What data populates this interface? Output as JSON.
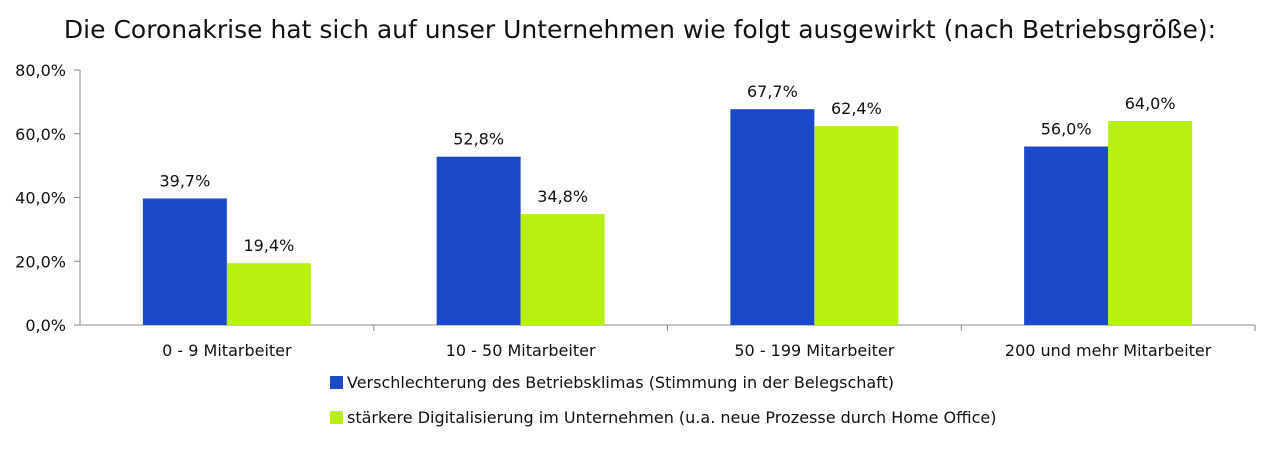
{
  "chart_data": {
    "type": "bar",
    "title": "Die Coronakrise hat sich auf unser Unternehmen wie folgt ausgewirkt (nach Betriebsgröße):",
    "categories": [
      "0 - 9 Mitarbeiter",
      "10 - 50 Mitarbeiter",
      "50 - 199 Mitarbeiter",
      "200 und mehr Mitarbeiter"
    ],
    "series": [
      {
        "name": "Verschlechterung des Betriebsklimas (Stimmung in der Belegschaft)",
        "color": "#1a49c9",
        "values": [
          39.7,
          52.8,
          67.7,
          56.0
        ],
        "labels": [
          "39,7%",
          "52,8%",
          "67,7%",
          "56,0%"
        ]
      },
      {
        "name": "stärkere Digitalisierung im Unternehmen (u.a. neue Prozesse durch Home Office)",
        "color": "#b8f014",
        "values": [
          19.4,
          34.8,
          62.4,
          64.0
        ],
        "labels": [
          "19,4%",
          "34,8%",
          "62,4%",
          "64,0%"
        ]
      }
    ],
    "ylim": [
      0,
      80
    ],
    "yticks": [
      0,
      20,
      40,
      60,
      80
    ],
    "ytick_labels": [
      "0,0%",
      "20,0%",
      "40,0%",
      "60,0%",
      "80,0%"
    ],
    "xlabel": "",
    "ylabel": "",
    "grid": false,
    "legend_position": "bottom-center"
  }
}
